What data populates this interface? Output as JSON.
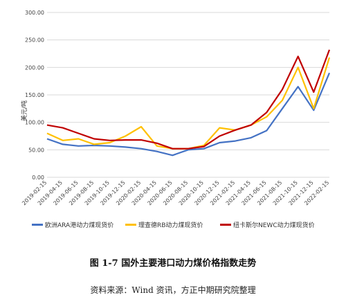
{
  "chart_data": {
    "type": "line",
    "ylabel": "美元/吨",
    "ylim": [
      0,
      300
    ],
    "yticks": [
      "0.00",
      "50.00",
      "100.00",
      "150.00",
      "200.00",
      "250.00",
      "300.00"
    ],
    "grid": true,
    "legend_position": "bottom",
    "x": [
      "2019-02-15",
      "2019-04-15",
      "2019-06-15",
      "2019-08-15",
      "2019-10-15",
      "2019-12-15",
      "2020-02-15",
      "2020-04-15",
      "2020-06-15",
      "2020-08-15",
      "2020-10-15",
      "2020-12-15",
      "2021-02-15",
      "2021-04-15",
      "2021-06-15",
      "2021-08-15",
      "2021-10-15",
      "2021-12-15",
      "2022-02-15"
    ],
    "series": [
      {
        "name": "欧洲ARA港动力煤现货价",
        "color": "#4472C4",
        "values": [
          70,
          60,
          57,
          58,
          57,
          55,
          52,
          47,
          40,
          50,
          52,
          63,
          66,
          72,
          85,
          125,
          165,
          122,
          190
        ]
      },
      {
        "name": "理查德RB动力煤现货价",
        "color": "#FFC000",
        "values": [
          80,
          67,
          70,
          60,
          63,
          75,
          92,
          57,
          52,
          52,
          58,
          90,
          86,
          95,
          110,
          140,
          200,
          125,
          218
        ]
      },
      {
        "name": "纽卡斯尔NEWC动力煤现货价",
        "color": "#C00000",
        "values": [
          95,
          90,
          80,
          70,
          67,
          68,
          68,
          62,
          52,
          52,
          56,
          75,
          86,
          95,
          118,
          160,
          220,
          155,
          232
        ]
      }
    ]
  },
  "caption": "图 1-7 国外主要港口动力煤价格指数走势",
  "source": "资料来源：Wind 资讯，方正中期研究院整理"
}
